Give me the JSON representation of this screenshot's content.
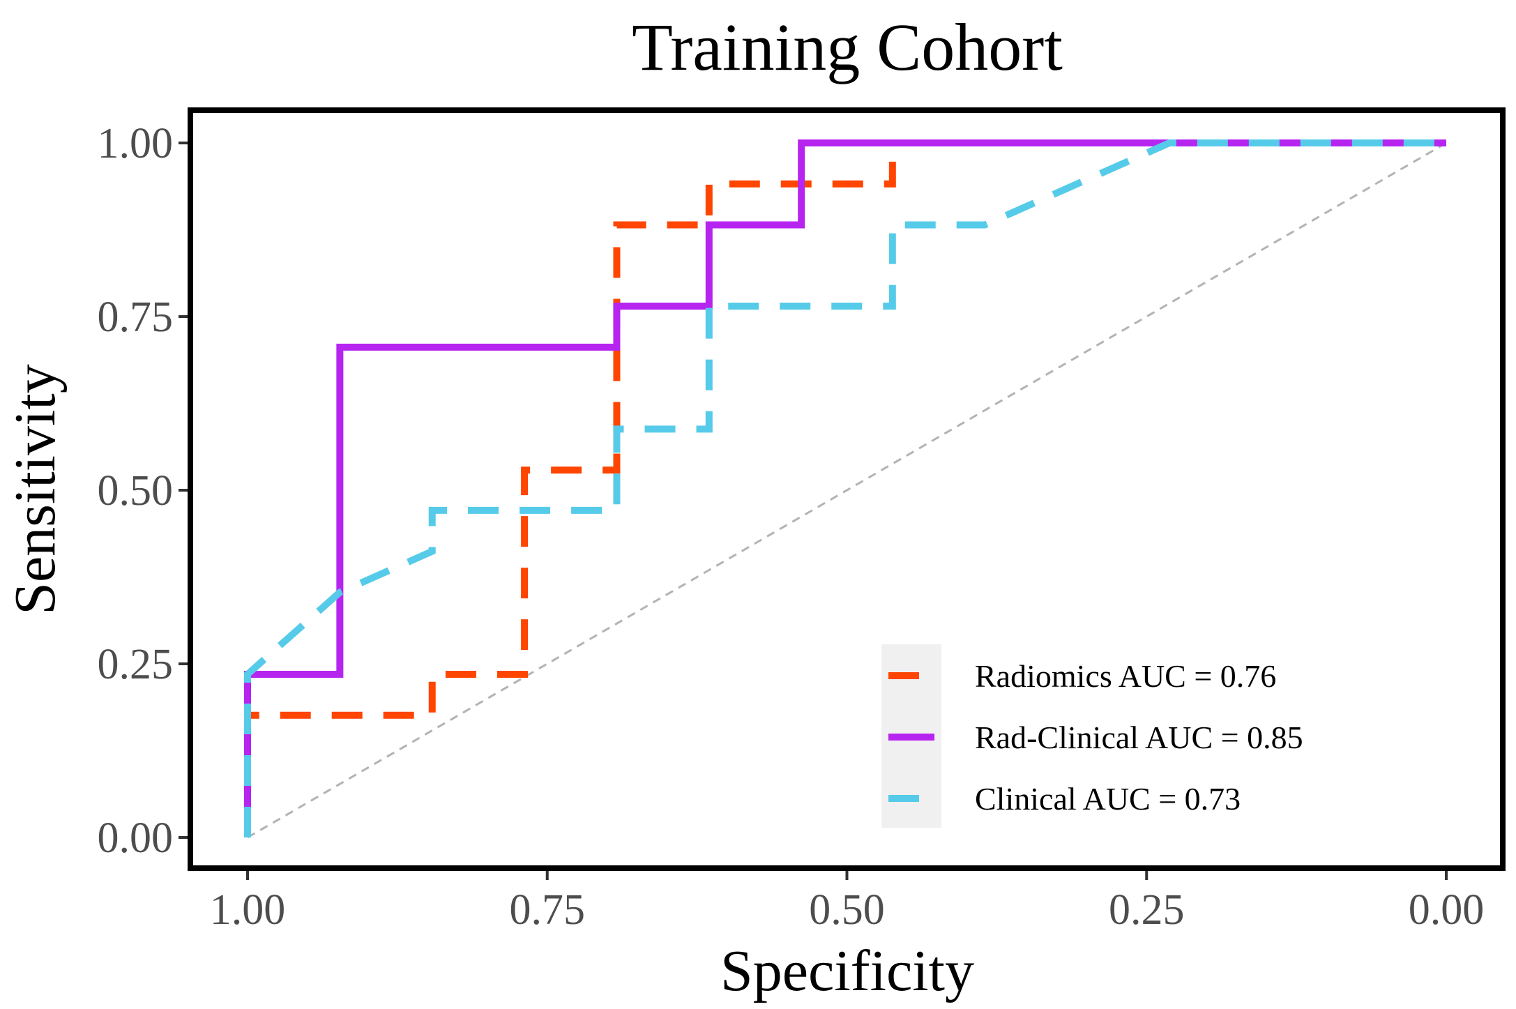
{
  "chart_data": {
    "type": "line",
    "title": "Training Cohort",
    "xlabel": "Specificity",
    "ylabel": "Sensitivity",
    "xlim": [
      1.0,
      0.0
    ],
    "ylim": [
      0.0,
      1.0
    ],
    "x_reversed": true,
    "grid": false,
    "legend_position": "bottom-right",
    "xticks": [
      "1.00",
      "0.75",
      "0.50",
      "0.25",
      "0.00"
    ],
    "xtick_values": [
      1.0,
      0.75,
      0.5,
      0.25,
      0.0
    ],
    "yticks": [
      "0.00",
      "0.25",
      "0.50",
      "0.75",
      "1.00"
    ],
    "ytick_values": [
      0.0,
      0.25,
      0.5,
      0.75,
      1.0
    ],
    "reference_line": {
      "from": [
        1.0,
        0.0
      ],
      "to": [
        0.0,
        1.0
      ],
      "color": "#b3b3b3",
      "style": "dashed"
    },
    "series": [
      {
        "name": "Radiomics AUC = 0.76",
        "color": "#ff4500",
        "style": "dashed",
        "specificity": [
          1.0,
          1.0,
          0.846,
          0.846,
          0.769,
          0.769,
          0.692,
          0.692,
          0.615,
          0.615,
          0.462,
          0.462,
          0.0
        ],
        "sensitivity": [
          0.0,
          0.176,
          0.176,
          0.235,
          0.235,
          0.529,
          0.529,
          0.882,
          0.882,
          0.941,
          0.941,
          1.0,
          1.0
        ]
      },
      {
        "name": "Rad-Clinical AUC = 0.85",
        "color": "#b625f0",
        "style": "solid",
        "specificity": [
          1.0,
          1.0,
          0.923,
          0.923,
          0.692,
          0.692,
          0.615,
          0.615,
          0.538,
          0.538,
          0.0
        ],
        "sensitivity": [
          0.0,
          0.235,
          0.235,
          0.706,
          0.706,
          0.765,
          0.765,
          0.882,
          0.882,
          1.0,
          1.0
        ]
      },
      {
        "name": "Clinical AUC = 0.73",
        "color": "#56cbe9",
        "style": "dashed",
        "specificity": [
          1.0,
          1.0,
          0.923,
          0.846,
          0.846,
          0.692,
          0.692,
          0.615,
          0.615,
          0.462,
          0.462,
          0.385,
          0.231,
          0.0
        ],
        "sensitivity": [
          0.0,
          0.235,
          0.353,
          0.412,
          0.471,
          0.471,
          0.588,
          0.588,
          0.765,
          0.765,
          0.882,
          0.882,
          1.0,
          1.0
        ]
      }
    ]
  }
}
